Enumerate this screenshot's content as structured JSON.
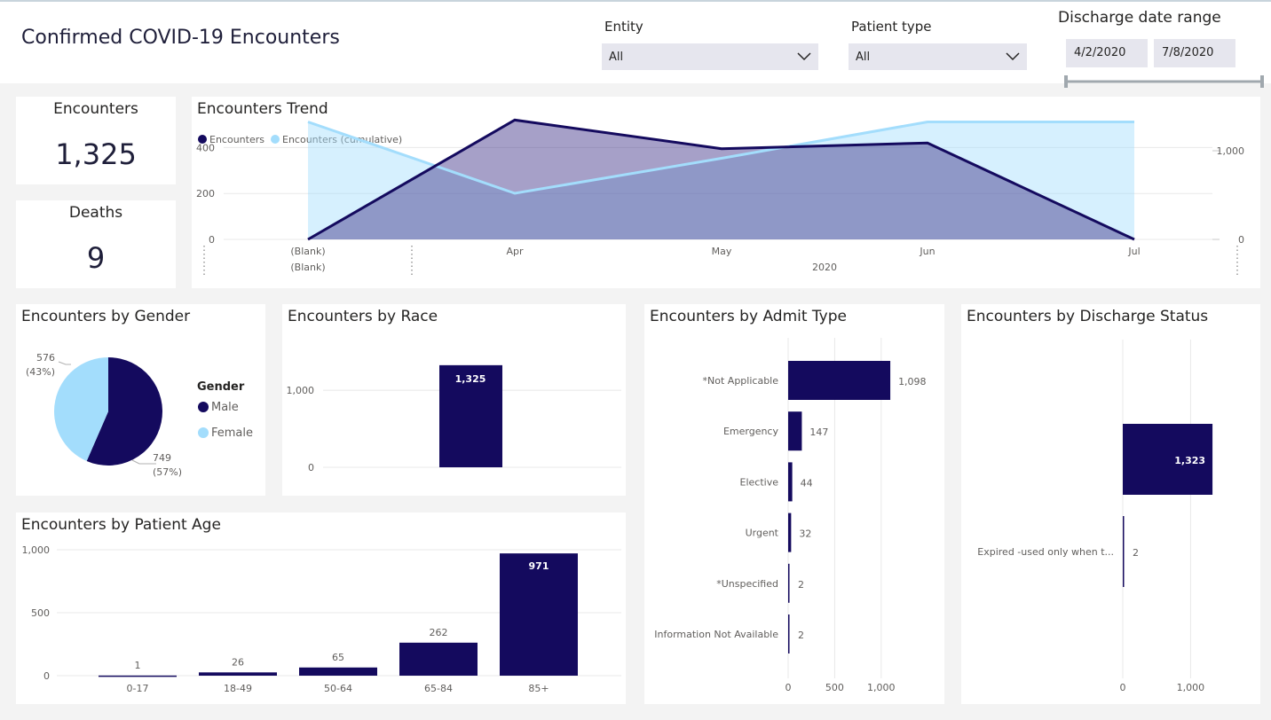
{
  "header": {
    "title": "Confirmed COVID-19 Encounters",
    "entity_label": "Entity",
    "entity_value": "All",
    "patient_type_label": "Patient type",
    "patient_type_value": "All",
    "discharge_label": "Discharge date range",
    "date_start": "4/2/2020",
    "date_end": "7/8/2020"
  },
  "kpis": {
    "encounters_label": "Encounters",
    "encounters_value": "1,325",
    "deaths_label": "Deaths",
    "deaths_value": "9"
  },
  "colors": {
    "dark": "#140a5e",
    "light": "#a3ddfc"
  },
  "chart_data": [
    {
      "id": "trend",
      "type": "line",
      "title": "Encounters Trend",
      "categories": [
        "(Blank)",
        "Apr",
        "May",
        "Jun",
        "Jul"
      ],
      "category_sublabels": [
        "(Blank)",
        "",
        "2020",
        "",
        ""
      ],
      "series": [
        {
          "name": "Encounters",
          "axis": "left",
          "values": [
            0,
            520,
            395,
            420,
            0
          ]
        },
        {
          "name": "Encounters (cumulative)",
          "axis": "right",
          "values": [
            1325,
            520,
            915,
            1325,
            1325
          ]
        }
      ],
      "y_left_ticks": [
        "0",
        "200",
        "400"
      ],
      "y_right_ticks": [
        "0",
        "1,000"
      ],
      "ylim_left": [
        0,
        560
      ],
      "ylim_right": [
        0,
        1450
      ]
    },
    {
      "id": "gender",
      "type": "pie",
      "title": "Encounters by Gender",
      "legend_title": "Gender",
      "slices": [
        {
          "label": "Male",
          "value": 749,
          "value_label": "749",
          "pct_label": "(57%)"
        },
        {
          "label": "Female",
          "value": 576,
          "value_label": "576",
          "pct_label": "(43%)"
        }
      ]
    },
    {
      "id": "race",
      "type": "bar",
      "title": "Encounters by Race",
      "categories": [
        ""
      ],
      "values": [
        1325
      ],
      "value_labels": [
        "1,325"
      ],
      "y_ticks": [
        {
          "value": 0,
          "label": "0"
        },
        {
          "value": 1000,
          "label": "1,000"
        }
      ],
      "ylim": [
        0,
        1450
      ]
    },
    {
      "id": "age",
      "type": "bar",
      "title": "Encounters by Patient Age",
      "categories": [
        "0-17",
        "18-49",
        "50-64",
        "65-84",
        "85+"
      ],
      "values": [
        1,
        26,
        65,
        262,
        971
      ],
      "value_labels": [
        "1",
        "26",
        "65",
        "262",
        "971"
      ],
      "y_ticks": [
        {
          "value": 0,
          "label": "0"
        },
        {
          "value": 500,
          "label": "500"
        },
        {
          "value": 1000,
          "label": "1,000"
        }
      ],
      "ylim": [
        0,
        1000
      ]
    },
    {
      "id": "admit",
      "type": "bar",
      "orientation": "horizontal",
      "title": "Encounters by Admit Type",
      "categories": [
        "*Not Applicable",
        "Emergency",
        "Elective",
        "Urgent",
        "*Unspecified",
        "Information Not Available"
      ],
      "values": [
        1098,
        147,
        44,
        32,
        2,
        2
      ],
      "value_labels": [
        "1,098",
        "147",
        "44",
        "32",
        "2",
        "2"
      ],
      "x_ticks": [
        {
          "value": 0,
          "label": "0"
        },
        {
          "value": 500,
          "label": "500"
        },
        {
          "value": 1000,
          "label": "1,000"
        }
      ],
      "xlim": [
        0,
        1150
      ]
    },
    {
      "id": "discharge",
      "type": "bar",
      "orientation": "horizontal",
      "title": "Encounters by Discharge Status",
      "categories": [
        "",
        "Expired -used only when t..."
      ],
      "values": [
        1323,
        2
      ],
      "value_labels": [
        "1,323",
        "2"
      ],
      "x_ticks": [
        {
          "value": 0,
          "label": "0"
        },
        {
          "value": 1000,
          "label": "1,000"
        }
      ],
      "xlim": [
        0,
        1440
      ]
    }
  ]
}
